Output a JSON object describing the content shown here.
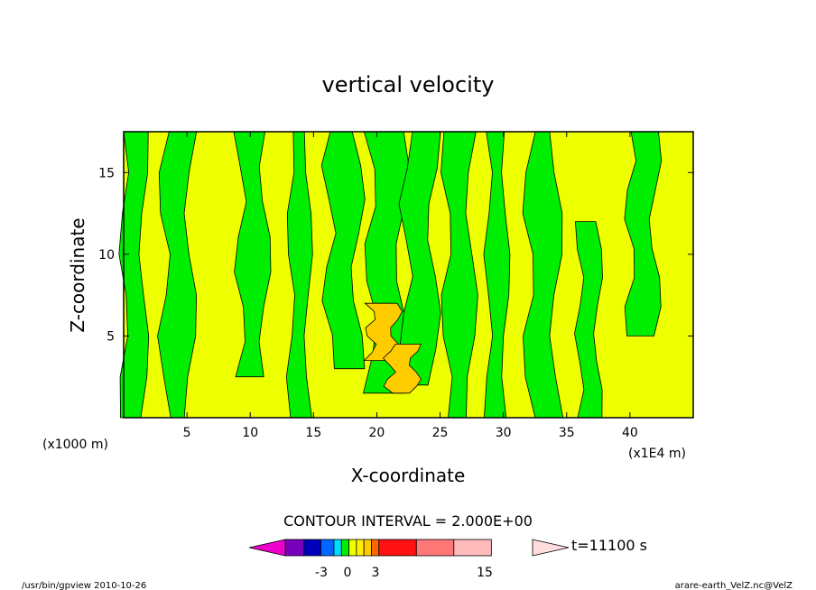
{
  "chart_data": {
    "type": "heatmap",
    "title": "vertical velocity",
    "xlabel": "X-coordinate",
    "ylabel": "Z-coordinate",
    "x_unit_left": "(x1000 m)",
    "x_unit_right": "(x1E4 m)",
    "xlim": [
      0,
      45
    ],
    "ylim": [
      0,
      17.5
    ],
    "x_ticks": [
      "5",
      "10",
      "15",
      "20",
      "25",
      "30",
      "35",
      "40"
    ],
    "y_ticks": [
      "5",
      "10",
      "15"
    ],
    "grid": false,
    "contour_interval_text": "CONTOUR INTERVAL = 2.000E+00",
    "time_label": "t=11100 s",
    "colorbar_tick_labels": [
      "-3",
      "0",
      "3",
      "15"
    ],
    "colors": {
      "positive_small": "#eeff00",
      "negative_small": "#00ee00",
      "positive_mid": "#ffcc00",
      "positive_high": "#ff6600",
      "negative_mid": "#00ddff",
      "contour_line": "#000000"
    },
    "colorbar_colors": [
      "#ee00cc",
      "#7700bb",
      "#0000bb",
      "#0066ff",
      "#00ddff",
      "#00ee00",
      "#eeff00",
      "#ffee00",
      "#ffcc00",
      "#ff6600",
      "#ff1111",
      "#ff7777",
      "#ffbbbb",
      "#ffdddd"
    ],
    "background_sign": "positive_small",
    "green_regions": [
      {
        "x": [
          0.0,
          1.6
        ],
        "y": [
          0.0,
          17.5
        ]
      },
      {
        "x": [
          3.2,
          5.3
        ],
        "y": [
          0.0,
          17.5
        ]
      },
      {
        "x": [
          9.2,
          11.2
        ],
        "y": [
          2.5,
          17.5
        ]
      },
      {
        "x": [
          13.2,
          14.6
        ],
        "y": [
          0.0,
          17.5
        ]
      },
      {
        "x": [
          16.2,
          18.5
        ],
        "y": [
          3.0,
          17.5
        ]
      },
      {
        "x": [
          19.5,
          22.0
        ],
        "y": [
          1.5,
          17.5
        ]
      },
      {
        "x": [
          22.3,
          24.5
        ],
        "y": [
          2.0,
          17.5
        ]
      },
      {
        "x": [
          25.5,
          27.5
        ],
        "y": [
          0.0,
          17.5
        ]
      },
      {
        "x": [
          28.8,
          30.2
        ],
        "y": [
          0.0,
          17.5
        ]
      },
      {
        "x": [
          32.0,
          34.2
        ],
        "y": [
          0.0,
          17.5
        ]
      },
      {
        "x": [
          36.0,
          37.5
        ],
        "y": [
          0.0,
          12.0
        ]
      },
      {
        "x": [
          40.0,
          42.0
        ],
        "y": [
          5.0,
          17.5
        ]
      }
    ],
    "orange_regions": [
      {
        "x": [
          19.5,
          21.5
        ],
        "y": [
          3.5,
          7.0
        ]
      },
      {
        "x": [
          21.0,
          23.0
        ],
        "y": [
          1.5,
          4.5
        ]
      }
    ]
  },
  "footer": {
    "left": "/usr/bin/gpview   2010-10-26",
    "right": "arare-earth_VelZ.nc@VelZ"
  }
}
